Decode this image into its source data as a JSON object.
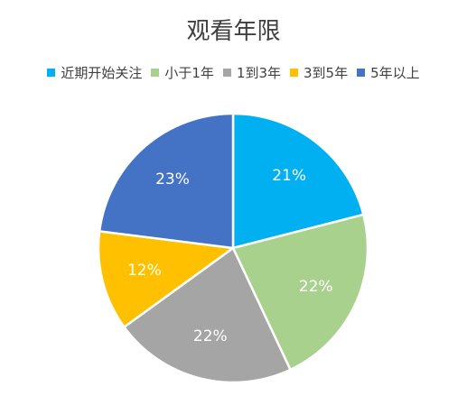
{
  "chart_data": {
    "type": "pie",
    "title": "观看年限",
    "legend_position": "top",
    "slices": [
      {
        "label": "近期开始关注",
        "value": 21,
        "value_label": "21%",
        "color": "#00B0F0"
      },
      {
        "label": "小于1年",
        "value": 22,
        "value_label": "22%",
        "color": "#A9D18E"
      },
      {
        "label": "1到3年",
        "value": 22,
        "value_label": "22%",
        "color": "#A5A5A5"
      },
      {
        "label": "3到5年",
        "value": 12,
        "value_label": "12%",
        "color": "#FFC000"
      },
      {
        "label": "5年以上",
        "value": 23,
        "value_label": "23%",
        "color": "#4472C4"
      }
    ]
  }
}
